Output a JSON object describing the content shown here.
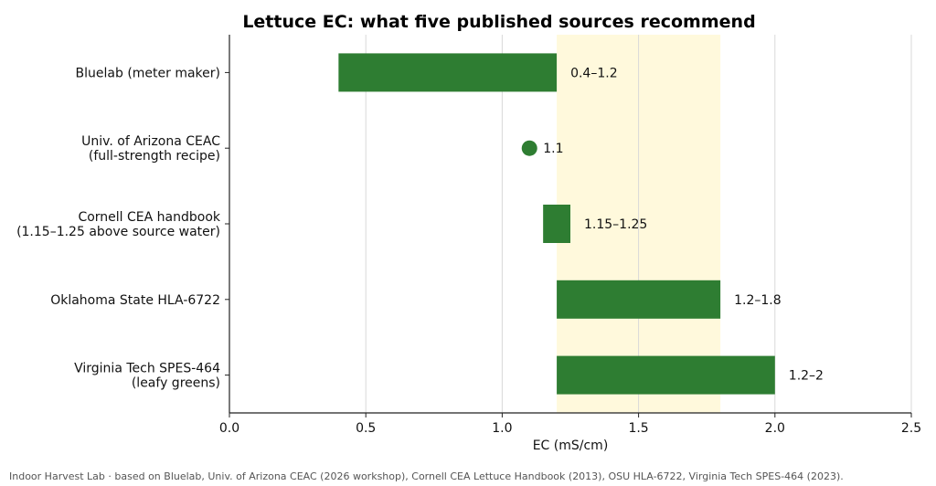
{
  "chart_data": {
    "type": "bar",
    "orientation": "horizontal-range",
    "title": "Lettuce EC: what five published sources recommend",
    "xlabel": "EC (mS/cm)",
    "ylabel": "",
    "xlim": [
      0,
      2.5
    ],
    "xticks": [
      0.0,
      0.5,
      1.0,
      1.5,
      2.0,
      2.5
    ],
    "xtick_labels": [
      "0.0",
      "0.5",
      "1.0",
      "1.5",
      "2.0",
      "2.5"
    ],
    "grid": "vertical",
    "highlight_band": {
      "from": 1.2,
      "to": 1.8,
      "color": "#fff9dc"
    },
    "bar_color": "#2e7d32",
    "sources": [
      {
        "label": [
          "Bluelab (meter maker)"
        ],
        "low": 0.4,
        "high": 1.2,
        "value_label": "0.4–1.2"
      },
      {
        "label": [
          "Univ. of Arizona CEAC",
          "(full-strength recipe)"
        ],
        "low": 1.1,
        "high": 1.1,
        "value_label": "1.1"
      },
      {
        "label": [
          "Cornell CEA handbook",
          "(1.15–1.25 above source water)"
        ],
        "low": 1.15,
        "high": 1.25,
        "value_label": "1.15–1.25"
      },
      {
        "label": [
          "Oklahoma State HLA-6722"
        ],
        "low": 1.2,
        "high": 1.8,
        "value_label": "1.2–1.8"
      },
      {
        "label": [
          "Virginia Tech SPES-464",
          "(leafy greens)"
        ],
        "low": 1.2,
        "high": 2.0,
        "value_label": "1.2–2"
      }
    ]
  },
  "footnote": "Indoor Harvest Lab · based on Bluelab, Univ. of Arizona CEAC (2026 workshop), Cornell CEA Lettuce Handbook (2013), OSU HLA-6722, Virginia Tech SPES-464 (2023)."
}
